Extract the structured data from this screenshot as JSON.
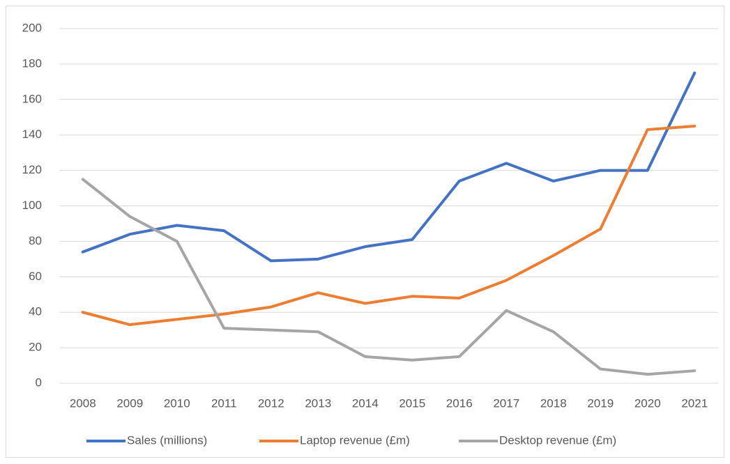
{
  "chart_data": {
    "type": "line",
    "categories": [
      "2008",
      "2009",
      "2010",
      "2011",
      "2012",
      "2013",
      "2014",
      "2015",
      "2016",
      "2017",
      "2018",
      "2019",
      "2020",
      "2021"
    ],
    "series": [
      {
        "name": "Sales (millions)",
        "color": "#4472c4",
        "values": [
          74,
          84,
          89,
          86,
          69,
          70,
          77,
          81,
          114,
          124,
          114,
          120,
          120,
          175
        ]
      },
      {
        "name": "Laptop revenue (£m)",
        "color": "#ed7d31",
        "values": [
          40,
          33,
          36,
          39,
          43,
          51,
          45,
          49,
          48,
          58,
          72,
          87,
          143,
          145
        ]
      },
      {
        "name": "Desktop revenue (£m)",
        "color": "#a5a5a5",
        "values": [
          115,
          94,
          80,
          31,
          30,
          29,
          15,
          13,
          15,
          41,
          29,
          8,
          5,
          7
        ]
      }
    ],
    "ylim": [
      0,
      200
    ],
    "yticks": [
      0,
      20,
      40,
      60,
      80,
      100,
      120,
      140,
      160,
      180,
      200
    ],
    "grid": true,
    "legend": "bottom"
  }
}
